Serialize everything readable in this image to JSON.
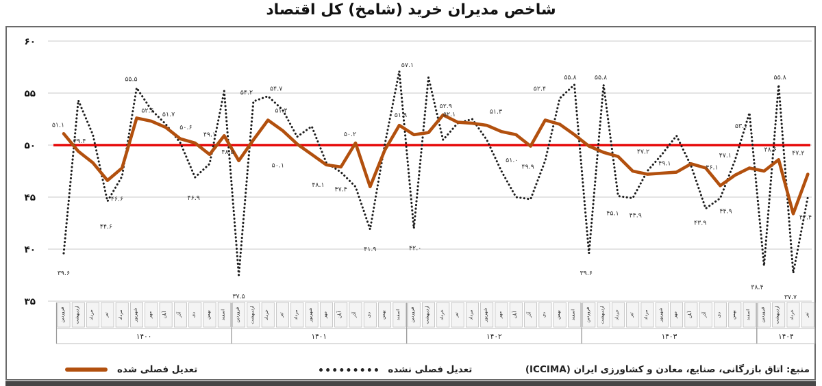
{
  "title": "شاخص مدیران خرید (شامخ) کل اقتصاد",
  "legend": {
    "adjusted_label": "تعدیل فصلی شده",
    "raw_label": "تعدیل فصلی نشده"
  },
  "source": "منبع: اتاق بازرگانی، صنایع، معادن و کشاورزی ایران (ICCIMA)",
  "colors": {
    "adjusted": "#b2500e",
    "raw": "#1c1c1c",
    "baseline": "#e60606",
    "grid": "#c9c9c9",
    "axis_text": "#111111",
    "label_text": "#333333",
    "month_box_fill": "#f4f4f4",
    "month_box_border": "#b5b5b5"
  },
  "chart_data": {
    "type": "line",
    "ylim": [
      35,
      60
    ],
    "yticks": [
      35,
      40,
      45,
      50,
      55,
      60
    ],
    "ytick_labels": [
      "۳۵",
      "۴۰",
      "۴۵",
      "۵۰",
      "۵۵",
      "۶۰"
    ],
    "baseline": 50,
    "grid": true,
    "legend_position": "bottom-left",
    "month_names": [
      "فروردین",
      "اردیبهشت",
      "خرداد",
      "تیر",
      "مرداد",
      "شهریور",
      "مهر",
      "آبان",
      "آذر",
      "دی",
      "بهمن",
      "اسفند"
    ],
    "years": [
      {
        "label": "۱۴۰۰",
        "months": 12
      },
      {
        "label": "۱۴۰۱",
        "months": 12
      },
      {
        "label": "۱۴۰۲",
        "months": 12
      },
      {
        "label": "۱۴۰۳",
        "months": 12
      },
      {
        "label": "۱۴۰۴",
        "months": 4
      }
    ],
    "series": [
      {
        "name": "تعدیل فصلی شده",
        "style": "solid",
        "values": [
          51.1,
          49.4,
          48.3,
          46.6,
          47.8,
          52.6,
          52.3,
          51.7,
          50.6,
          50.2,
          49.1,
          50.9,
          48.5,
          50.5,
          52.4,
          51.4,
          50.1,
          49.1,
          48.1,
          47.9,
          50.2,
          46.0,
          49.5,
          51.9,
          51.0,
          51.2,
          52.9,
          52.2,
          52.1,
          51.9,
          51.3,
          51.0,
          49.9,
          52.4,
          52.0,
          51.0,
          49.9,
          49.3,
          48.9,
          47.5,
          47.2,
          47.3,
          47.4,
          48.2,
          47.8,
          46.1,
          47.1,
          47.8,
          47.5,
          48.6,
          43.4,
          47.2
        ]
      },
      {
        "name": "تعدیل فصلی نشده",
        "style": "dotted",
        "values": [
          39.6,
          54.3,
          51.0,
          44.6,
          47.0,
          55.5,
          53.4,
          52.0,
          50.2,
          46.9,
          48.2,
          55.2,
          37.5,
          54.2,
          54.7,
          53.4,
          50.8,
          51.8,
          48.3,
          47.4,
          46.0,
          41.9,
          50.0,
          57.1,
          42.0,
          56.5,
          50.5,
          52.1,
          52.5,
          50.5,
          47.5,
          45.0,
          44.8,
          48.5,
          54.5,
          55.8,
          39.6,
          55.8,
          45.1,
          44.9,
          47.5,
          49.1,
          50.9,
          48.0,
          43.9,
          44.9,
          48.5,
          53.1,
          38.4,
          55.8,
          37.7,
          45.0
        ]
      }
    ],
    "point_labels": [
      [
        0,
        0,
        "۵۱.۱",
        -8,
        -10
      ],
      [
        0,
        1,
        "۳۹.۶",
        0,
        32
      ],
      [
        1,
        0,
        "۴۹.۴",
        2,
        -12
      ],
      [
        3,
        1,
        "۴۴.۶",
        -2,
        40
      ],
      [
        3,
        0,
        "۴۶.۶",
        14,
        30
      ],
      [
        5,
        1,
        "۵۵.۵",
        -8,
        -10
      ],
      [
        5,
        0,
        "۵۲.۶",
        16,
        -8
      ],
      [
        7,
        0,
        "۵۱.۷",
        4,
        -16
      ],
      [
        8,
        0,
        "۵۰.۶",
        8,
        -14
      ],
      [
        9,
        1,
        "۴۶.۹",
        -2,
        33
      ],
      [
        10,
        0,
        "۴۹.۱",
        0,
        -26
      ],
      [
        12,
        1,
        "۳۷.۵",
        0,
        34
      ],
      [
        12,
        0,
        "۴۸.۵",
        -16,
        -10
      ],
      [
        13,
        1,
        "۵۴.۲",
        -10,
        -10
      ],
      [
        14,
        1,
        "۵۴.۷",
        12,
        -8
      ],
      [
        15,
        0,
        "۵۱.۴",
        -2,
        -26
      ],
      [
        16,
        0,
        "۵۰.۱",
        -28,
        34
      ],
      [
        18,
        0,
        "۴۸.۱",
        -12,
        32
      ],
      [
        19,
        1,
        "۴۷.۴",
        0,
        28
      ],
      [
        20,
        0,
        "۵۰.۲",
        -8,
        -10
      ],
      [
        21,
        1,
        "۴۱.۹",
        0,
        32
      ],
      [
        23,
        1,
        "۵۷.۱",
        12,
        -6
      ],
      [
        23,
        0,
        "۵۱.۹",
        2,
        -12
      ],
      [
        24,
        1,
        "۴۲.۰",
        2,
        32
      ],
      [
        26,
        0,
        "۵۲.۹",
        4,
        -10
      ],
      [
        27,
        1,
        "۵۲.۱",
        -12,
        -10
      ],
      [
        30,
        0,
        "۵۱.۳",
        -8,
        -26
      ],
      [
        31,
        0,
        "۵۱.۰",
        -6,
        40
      ],
      [
        32,
        0,
        "۴۹.۹",
        -4,
        33
      ],
      [
        33,
        0,
        "۵۲.۴",
        -8,
        -43
      ],
      [
        35,
        1,
        "۵۵.۸",
        -6,
        -8
      ],
      [
        36,
        1,
        "۳۹.۶",
        -4,
        32
      ],
      [
        37,
        1,
        "۵۵.۸",
        -4,
        -8
      ],
      [
        38,
        1,
        "۴۵.۱",
        -8,
        28
      ],
      [
        39,
        1,
        "۴۴.۹",
        4,
        28
      ],
      [
        40,
        0,
        "۴۷.۲",
        -6,
        -30
      ],
      [
        41,
        1,
        "۴۹.۱",
        4,
        16
      ],
      [
        44,
        1,
        "۴۳.۹",
        -8,
        24
      ],
      [
        45,
        1,
        "۴۴.۹",
        8,
        22
      ],
      [
        45,
        0,
        "۴۶.۱",
        -12,
        -24
      ],
      [
        46,
        0,
        "۴۷.۱",
        -14,
        -26
      ],
      [
        47,
        1,
        "۵۳.۱",
        -12,
        22
      ],
      [
        48,
        1,
        "۳۸.۴",
        -10,
        34
      ],
      [
        49,
        1,
        "۵۵.۸",
        2,
        -8
      ],
      [
        49,
        0,
        "۴۸.۶",
        -12,
        -12
      ],
      [
        50,
        1,
        "۳۷.۷",
        -4,
        38
      ],
      [
        50,
        0,
        "۴۳.۴",
        18,
        8
      ],
      [
        51,
        0,
        "۴۷.۲",
        -14,
        -28
      ]
    ]
  }
}
